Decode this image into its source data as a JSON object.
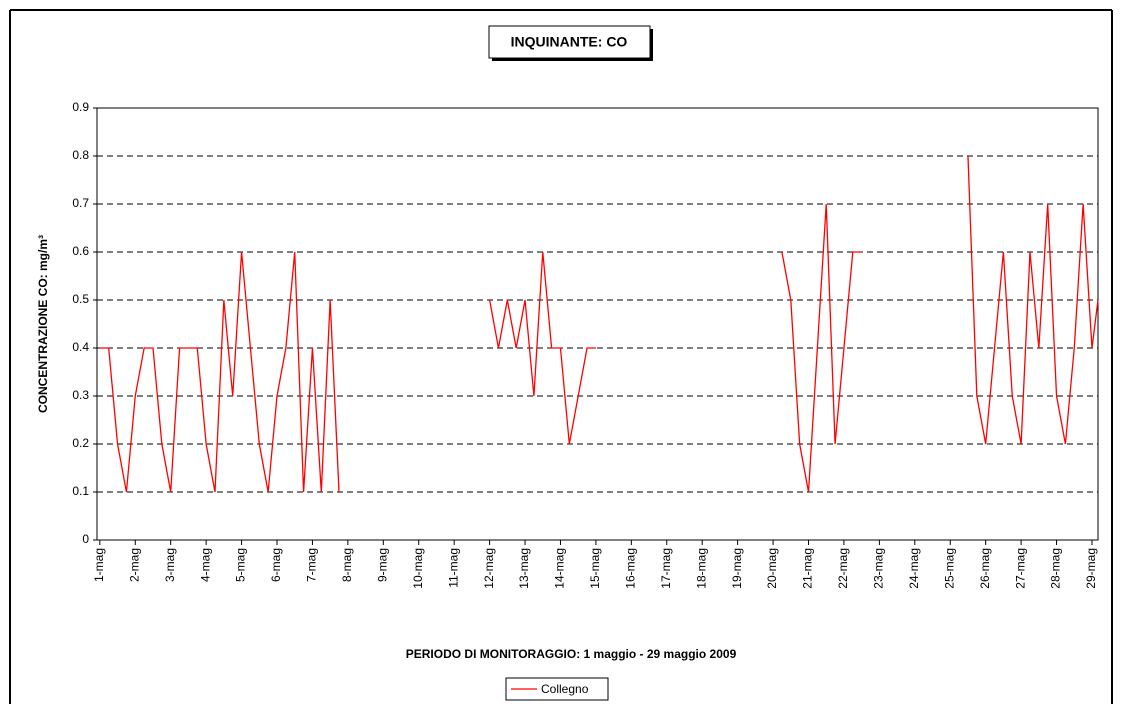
{
  "chart_data": {
    "type": "line",
    "title": "INQUINANTE: CO",
    "x_label": "PERIODO DI MONITORAGGIO: 1 maggio - 29 maggio 2009",
    "y_label": "CONCENTRAZIONE CO: mg/m³",
    "xlim": [
      -0.08,
      28.17
    ],
    "ylim": [
      0,
      0.9
    ],
    "yticks": [
      0,
      0.1,
      0.2,
      0.3,
      0.4,
      0.5,
      0.6,
      0.7,
      0.8,
      0.9
    ],
    "xticks": [
      {
        "value": 0,
        "label": "1-mag"
      },
      {
        "value": 1,
        "label": "2-mag"
      },
      {
        "value": 2,
        "label": "3-mag"
      },
      {
        "value": 3,
        "label": "4-mag"
      },
      {
        "value": 4,
        "label": "5-mag"
      },
      {
        "value": 5,
        "label": "6-mag"
      },
      {
        "value": 6,
        "label": "7-mag"
      },
      {
        "value": 7,
        "label": "8-mag"
      },
      {
        "value": 8,
        "label": "9-mag"
      },
      {
        "value": 9,
        "label": "10-mag"
      },
      {
        "value": 10,
        "label": "11-mag"
      },
      {
        "value": 11,
        "label": "12-mag"
      },
      {
        "value": 12,
        "label": "13-mag"
      },
      {
        "value": 13,
        "label": "14-mag"
      },
      {
        "value": 14,
        "label": "15-mag"
      },
      {
        "value": 15,
        "label": "16-mag"
      },
      {
        "value": 16,
        "label": "17-mag"
      },
      {
        "value": 17,
        "label": "18-mag"
      },
      {
        "value": 18,
        "label": "19-mag"
      },
      {
        "value": 19,
        "label": "20-mag"
      },
      {
        "value": 20,
        "label": "21-mag"
      },
      {
        "value": 21,
        "label": "22-mag"
      },
      {
        "value": 22,
        "label": "23-mag"
      },
      {
        "value": 23,
        "label": "24-mag"
      },
      {
        "value": 24,
        "label": "25-mag"
      },
      {
        "value": 25,
        "label": "26-mag"
      },
      {
        "value": 26,
        "label": "27-mag"
      },
      {
        "value": 27,
        "label": "28-mag"
      },
      {
        "value": 28,
        "label": "29-mag"
      }
    ],
    "grid": true,
    "legend": "bottom",
    "x": [
      0,
      0.25,
      0.5,
      0.75,
      1,
      1.25,
      1.5,
      1.75,
      2,
      2.25,
      2.5,
      2.75,
      3,
      3.25,
      3.5,
      3.75,
      4,
      4.25,
      4.5,
      4.75,
      5,
      5.25,
      5.5,
      5.75,
      6,
      6.25,
      6.5,
      6.75,
      8.5,
      11,
      11.25,
      11.5,
      11.75,
      12,
      12.25,
      12.5,
      12.75,
      13,
      13.25,
      13.5,
      13.75,
      14,
      17,
      19.25,
      19.5,
      19.75,
      20,
      20.25,
      20.5,
      20.75,
      21,
      21.25,
      21.5,
      23,
      24.5,
      24.75,
      25,
      25.25,
      25.5,
      25.75,
      26,
      26.25,
      26.5,
      26.75,
      27,
      27.25,
      27.5,
      27.75,
      28,
      28.17
    ],
    "series": [
      {
        "name": "Collegno",
        "color": "#ff0000",
        "values": [
          0.4,
          0.4,
          0.2,
          0.1,
          0.3,
          0.4,
          0.4,
          0.2,
          0.1,
          0.4,
          0.4,
          0.4,
          0.2,
          0.1,
          0.5,
          0.3,
          0.6,
          0.4,
          0.2,
          0.1,
          0.3,
          0.4,
          0.6,
          0.1,
          0.4,
          0.1,
          0.5,
          0.1,
          null,
          0.5,
          0.4,
          0.5,
          0.4,
          0.5,
          0.3,
          0.6,
          0.4,
          0.4,
          0.2,
          0.3,
          0.4,
          0.4,
          null,
          0.6,
          0.5,
          0.2,
          0.1,
          0.4,
          0.7,
          0.2,
          0.4,
          0.6,
          0.6,
          null,
          0.8,
          0.3,
          0.2,
          0.4,
          0.6,
          0.3,
          0.2,
          0.6,
          0.4,
          0.7,
          0.3,
          0.2,
          0.4,
          0.7,
          0.4,
          0.5
        ]
      }
    ]
  }
}
